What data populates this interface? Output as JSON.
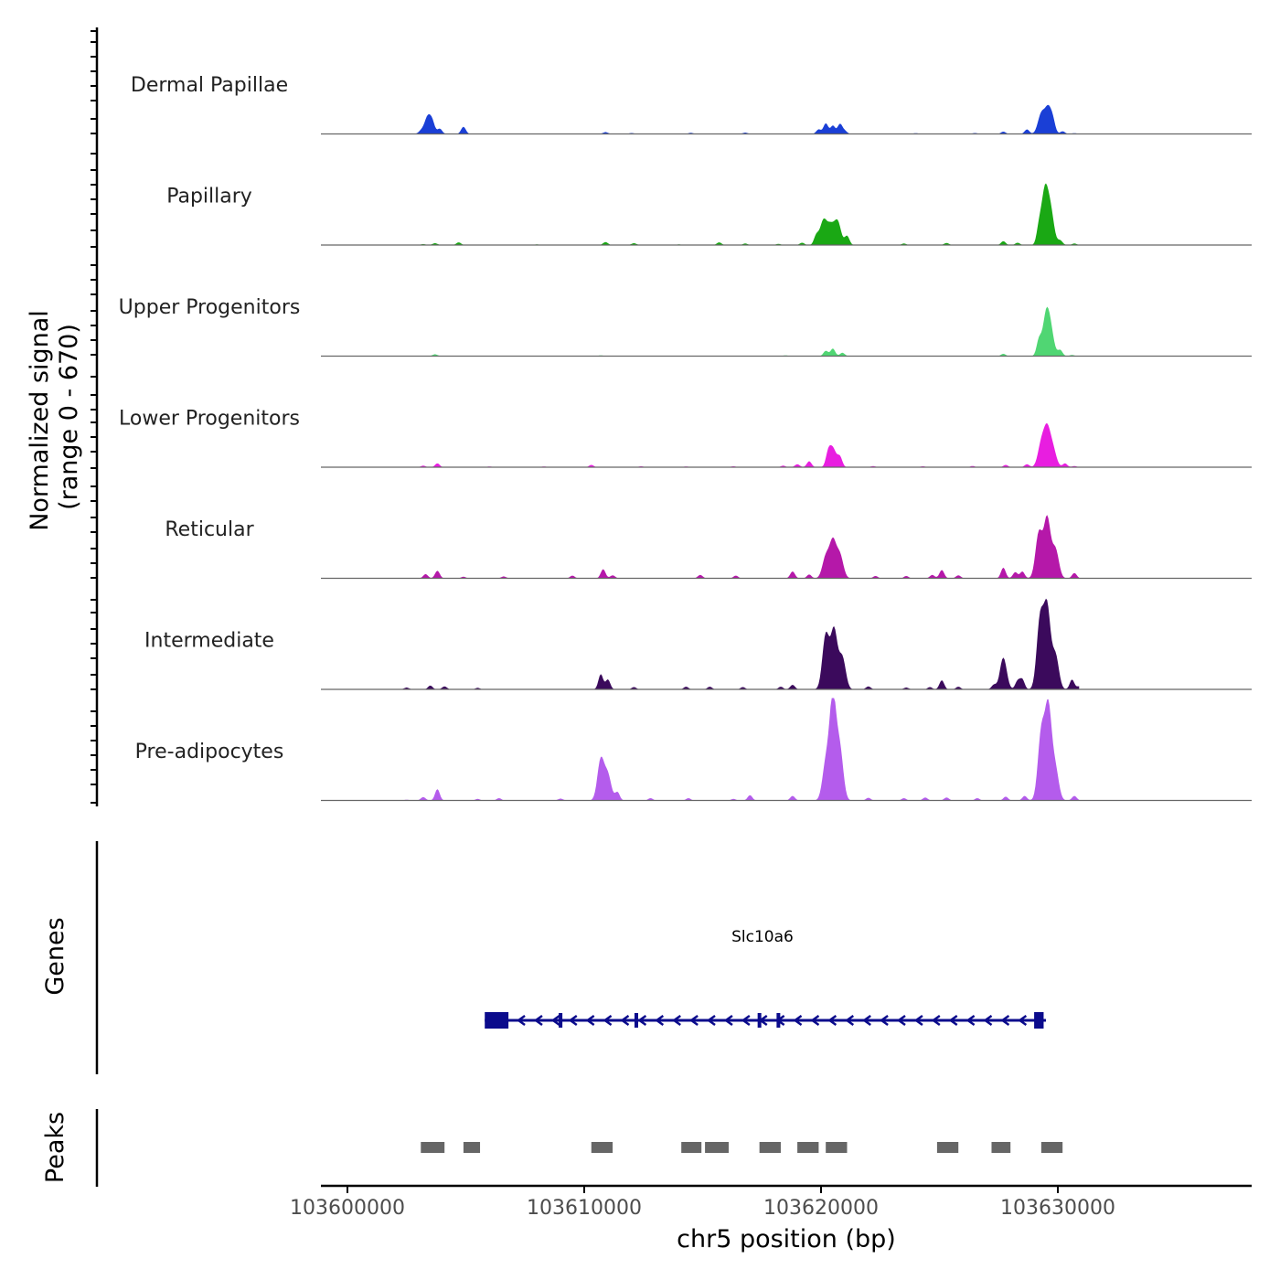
{
  "chart_data": {
    "type": "area",
    "title": "",
    "chromosome": "chr5",
    "xlabel": "chr5 position (bp)",
    "xlim": [
      103599000,
      103638500
    ],
    "x_ticks": [
      103600000,
      103610000,
      103620000,
      103630000
    ],
    "x_tick_labels": [
      "103600000",
      "103610000",
      "103620000",
      "103630000"
    ],
    "signal_ylabel_line1": "Normalized signal",
    "signal_ylabel_line2": "(range 0 - 670)",
    "signal_ylim": [
      0,
      670
    ],
    "genes_label": "Genes",
    "peaks_label": "Peaks",
    "series": [
      {
        "name": "Dermal Papillae",
        "color": "#1a3fd6",
        "values": [
          [
            103602800,
            2
          ],
          [
            103603100,
            35
          ],
          [
            103603400,
            240
          ],
          [
            103603600,
            110
          ],
          [
            103603900,
            70
          ],
          [
            103604900,
            95
          ],
          [
            103610900,
            25
          ],
          [
            103612000,
            12
          ],
          [
            103614500,
            15
          ],
          [
            103616800,
            18
          ],
          [
            103619900,
            60
          ],
          [
            103620200,
            140
          ],
          [
            103620500,
            110
          ],
          [
            103620800,
            130
          ],
          [
            103621000,
            40
          ],
          [
            103624000,
            10
          ],
          [
            103626500,
            12
          ],
          [
            103627700,
            30
          ],
          [
            103628700,
            60
          ],
          [
            103629300,
            260
          ],
          [
            103629600,
            340
          ],
          [
            103629800,
            120
          ],
          [
            103630200,
            35
          ],
          [
            103630700,
            10
          ]
        ]
      },
      {
        "name": "Papillary",
        "color": "#1aa814",
        "values": [
          [
            103603200,
            12
          ],
          [
            103603700,
            25
          ],
          [
            103604700,
            35
          ],
          [
            103608000,
            8
          ],
          [
            103610900,
            40
          ],
          [
            103612100,
            25
          ],
          [
            103614000,
            8
          ],
          [
            103615700,
            35
          ],
          [
            103616800,
            20
          ],
          [
            103618200,
            15
          ],
          [
            103619200,
            30
          ],
          [
            103619800,
            120
          ],
          [
            103620100,
            320
          ],
          [
            103620400,
            240
          ],
          [
            103620700,
            310
          ],
          [
            103621100,
            120
          ],
          [
            103623500,
            20
          ],
          [
            103625300,
            28
          ],
          [
            103627700,
            50
          ],
          [
            103628300,
            30
          ],
          [
            103629200,
            200
          ],
          [
            103629450,
            700
          ],
          [
            103629700,
            420
          ],
          [
            103630100,
            60
          ],
          [
            103630700,
            20
          ]
        ]
      },
      {
        "name": "Upper Progenitors",
        "color": "#50d673",
        "values": [
          [
            103603700,
            25
          ],
          [
            103610700,
            10
          ],
          [
            103618500,
            10
          ],
          [
            103620200,
            70
          ],
          [
            103620500,
            100
          ],
          [
            103620900,
            45
          ],
          [
            103627700,
            30
          ],
          [
            103629200,
            200
          ],
          [
            103629500,
            510
          ],
          [
            103629700,
            300
          ],
          [
            103630100,
            80
          ],
          [
            103630600,
            15
          ]
        ]
      },
      {
        "name": "Lower Progenitors",
        "color": "#e81ee0",
        "values": [
          [
            103603200,
            20
          ],
          [
            103603800,
            50
          ],
          [
            103606000,
            10
          ],
          [
            103608300,
            10
          ],
          [
            103610300,
            30
          ],
          [
            103612400,
            12
          ],
          [
            103614300,
            10
          ],
          [
            103616300,
            12
          ],
          [
            103618400,
            20
          ],
          [
            103619000,
            40
          ],
          [
            103619500,
            80
          ],
          [
            103620300,
            160
          ],
          [
            103620500,
            250
          ],
          [
            103620800,
            130
          ],
          [
            103622200,
            14
          ],
          [
            103624300,
            12
          ],
          [
            103626400,
            16
          ],
          [
            103627800,
            30
          ],
          [
            103628700,
            40
          ],
          [
            103629300,
            300
          ],
          [
            103629550,
            470
          ],
          [
            103629800,
            220
          ],
          [
            103630300,
            50
          ],
          [
            103630700,
            15
          ]
        ]
      },
      {
        "name": "Reticular",
        "color": "#b518a9",
        "values": [
          [
            103603300,
            55
          ],
          [
            103603800,
            100
          ],
          [
            103604900,
            20
          ],
          [
            103606600,
            25
          ],
          [
            103609500,
            35
          ],
          [
            103610800,
            120
          ],
          [
            103611200,
            40
          ],
          [
            103614900,
            45
          ],
          [
            103616400,
            35
          ],
          [
            103618800,
            90
          ],
          [
            103619500,
            50
          ],
          [
            103620200,
            280
          ],
          [
            103620500,
            480
          ],
          [
            103620800,
            300
          ],
          [
            103622300,
            30
          ],
          [
            103623600,
            30
          ],
          [
            103624700,
            45
          ],
          [
            103625100,
            110
          ],
          [
            103625800,
            40
          ],
          [
            103627700,
            140
          ],
          [
            103628200,
            80
          ],
          [
            103628500,
            90
          ],
          [
            103629200,
            600
          ],
          [
            103629550,
            790
          ],
          [
            103629900,
            380
          ],
          [
            103630700,
            70
          ]
        ]
      },
      {
        "name": "Intermediate",
        "color": "#3b0a5c",
        "values": [
          [
            103602500,
            25
          ],
          [
            103603500,
            50
          ],
          [
            103604100,
            40
          ],
          [
            103605500,
            20
          ],
          [
            103610700,
            200
          ],
          [
            103611000,
            130
          ],
          [
            103612100,
            30
          ],
          [
            103614300,
            35
          ],
          [
            103615300,
            35
          ],
          [
            103616700,
            30
          ],
          [
            103618300,
            35
          ],
          [
            103618800,
            60
          ],
          [
            103620200,
            720
          ],
          [
            103620550,
            780
          ],
          [
            103620900,
            420
          ],
          [
            103622000,
            40
          ],
          [
            103623600,
            25
          ],
          [
            103624600,
            30
          ],
          [
            103625100,
            120
          ],
          [
            103625800,
            35
          ],
          [
            103627300,
            60
          ],
          [
            103627700,
            420
          ],
          [
            103628300,
            110
          ],
          [
            103628500,
            130
          ],
          [
            103629250,
            920
          ],
          [
            103629550,
            1060
          ],
          [
            103629900,
            450
          ],
          [
            103630600,
            130
          ],
          [
            103630900,
            40
          ]
        ]
      },
      {
        "name": "Pre-adipocytes",
        "color": "#b45cec",
        "values": [
          [
            103602500,
            10
          ],
          [
            103603200,
            45
          ],
          [
            103603800,
            150
          ],
          [
            103605500,
            20
          ],
          [
            103606400,
            30
          ],
          [
            103609000,
            25
          ],
          [
            103610700,
            540
          ],
          [
            103611000,
            330
          ],
          [
            103611400,
            110
          ],
          [
            103612800,
            30
          ],
          [
            103614400,
            30
          ],
          [
            103616300,
            20
          ],
          [
            103617000,
            70
          ],
          [
            103618800,
            60
          ],
          [
            103620200,
            480
          ],
          [
            103620500,
            1350
          ],
          [
            103620800,
            650
          ],
          [
            103622000,
            35
          ],
          [
            103623500,
            30
          ],
          [
            103624400,
            40
          ],
          [
            103625300,
            40
          ],
          [
            103626600,
            30
          ],
          [
            103627800,
            50
          ],
          [
            103628600,
            60
          ],
          [
            103629300,
            880
          ],
          [
            103629600,
            1200
          ],
          [
            103629900,
            400
          ],
          [
            103630700,
            60
          ]
        ]
      }
    ],
    "gene": {
      "name": "Slc10a6",
      "color": "#0b0b8c",
      "start": 103605800,
      "end": 103629500,
      "strand": "-",
      "utr_blocks": [
        [
          103605800,
          103606800
        ],
        [
          103629000,
          103629400
        ]
      ],
      "exons": [
        103609000,
        103612200,
        103617400,
        103618200
      ]
    },
    "peaks": {
      "color": "#666666",
      "regions": [
        [
          103603100,
          103604100
        ],
        [
          103604900,
          103605600
        ],
        [
          103610300,
          103611200
        ],
        [
          103614100,
          103614950
        ],
        [
          103615100,
          103616100
        ],
        [
          103617400,
          103618300
        ],
        [
          103619000,
          103619900
        ],
        [
          103620200,
          103621100
        ],
        [
          103624900,
          103625800
        ],
        [
          103627200,
          103628000
        ],
        [
          103629300,
          103630200
        ]
      ]
    }
  }
}
